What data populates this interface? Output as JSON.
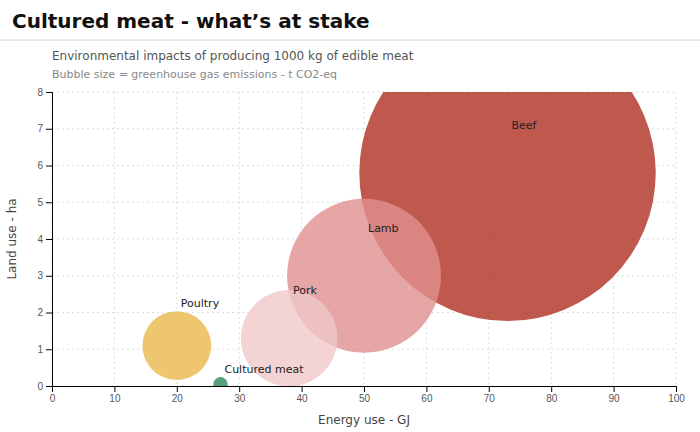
{
  "chart_data": {
    "type": "scatter",
    "title": "Cultured meat - what’s at stake",
    "subtitle": "Environmental impacts of producing 1000 kg of edible meat",
    "annotation": "Bubble size = greenhouse gas emissions - t CO2-eq",
    "xlabel": "Energy use - GJ",
    "ylabel": "Land use - ha",
    "labels": [
      "Beef",
      "Lamb",
      "Pork",
      "Poultry",
      "Cultured meat"
    ],
    "x": [
      73,
      50,
      38,
      20,
      27
    ],
    "values": [
      5.8,
      3.0,
      1.3,
      1.1,
      0.05
    ],
    "sizes": [
      52000,
      14000,
      5500,
      2800,
      120
    ],
    "colors": [
      "#b03020",
      "#e09090",
      "#f0c8c8",
      "#e8b84b",
      "#2e8b5a"
    ],
    "xlim": [
      0,
      100
    ],
    "ylim": [
      0,
      8
    ],
    "xticks": [
      0,
      10,
      20,
      30,
      40,
      50,
      60,
      70,
      80,
      90,
      100
    ],
    "yticks": [
      0,
      1,
      2,
      3,
      4,
      5,
      6,
      7,
      8
    ],
    "grid": true
  }
}
